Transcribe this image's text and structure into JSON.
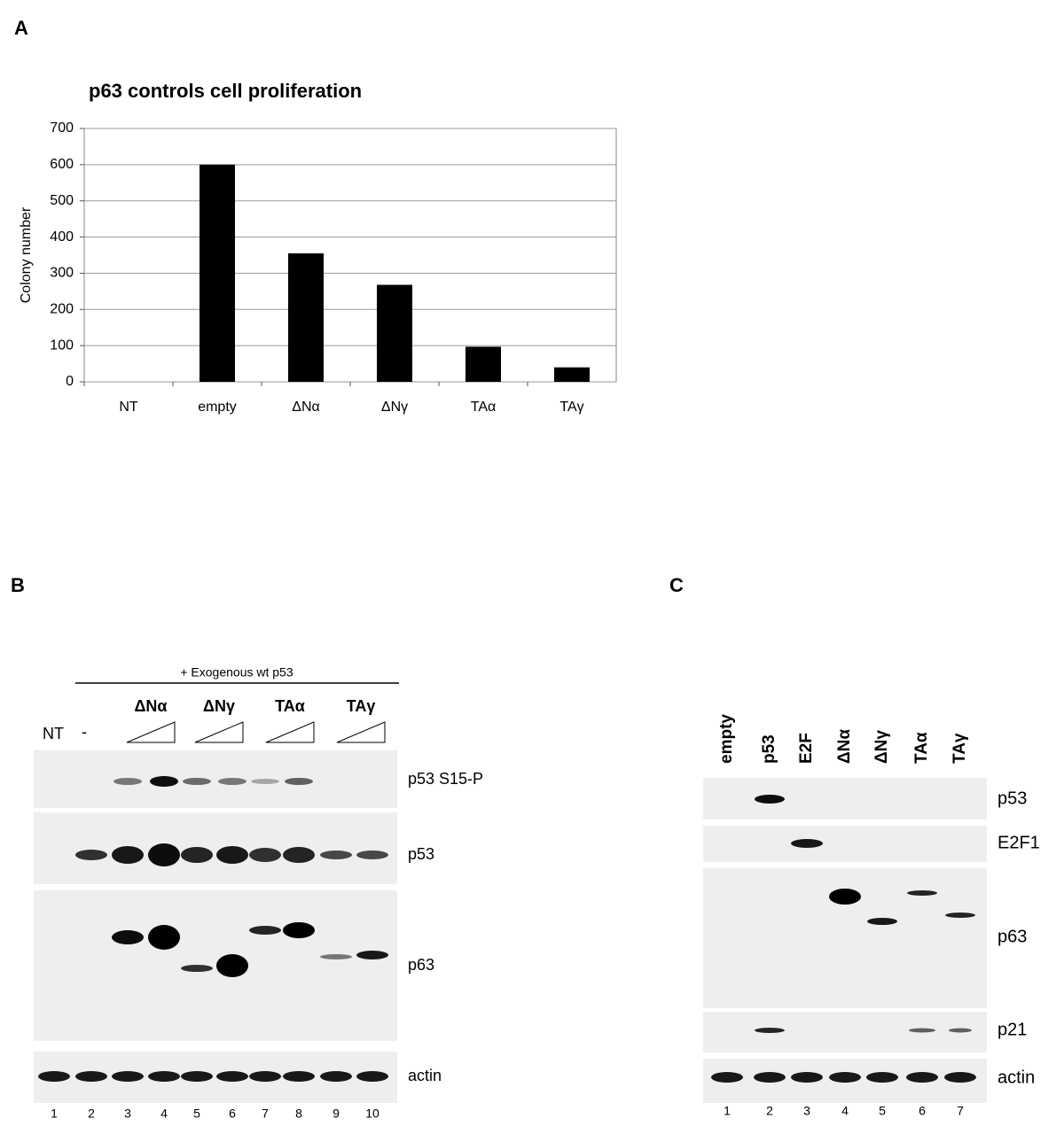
{
  "panel_labels": [
    "A",
    "B",
    "C"
  ],
  "chart_data": {
    "type": "bar",
    "title": "p63 controls cell proliferation",
    "y_label": "Colony number",
    "categories": [
      "NT",
      "empty",
      "ΔNα",
      "ΔNγ",
      "TAα",
      "TAγ"
    ],
    "values": [
      0,
      600,
      355,
      268,
      97,
      40
    ],
    "color": "#000000",
    "ylim": [
      0,
      700
    ],
    "yticks": [
      0,
      100,
      200,
      300,
      400,
      500,
      600,
      700
    ],
    "grid": true
  },
  "blot_b": {
    "header": "+ Exogenous wt p53",
    "groups": [
      "ΔNα",
      "ΔNγ",
      "TAα",
      "TAγ"
    ],
    "controls": [
      "NT",
      "-"
    ],
    "rows": [
      "p53 S15-P",
      "p53",
      "p63",
      "actin"
    ],
    "lanes": [
      "1",
      "2",
      "3",
      "4",
      "5",
      "6",
      "7",
      "8",
      "9",
      "10"
    ]
  },
  "blot_c": {
    "lane_labels": [
      "empty",
      "p53",
      "E2F",
      "ΔNα",
      "ΔNγ",
      "TAα",
      "TAγ"
    ],
    "rows": [
      "p53",
      "E2F1",
      "p63",
      "p21",
      "actin"
    ],
    "lanes": [
      "1",
      "2",
      "3",
      "4",
      "5",
      "6",
      "7"
    ]
  }
}
